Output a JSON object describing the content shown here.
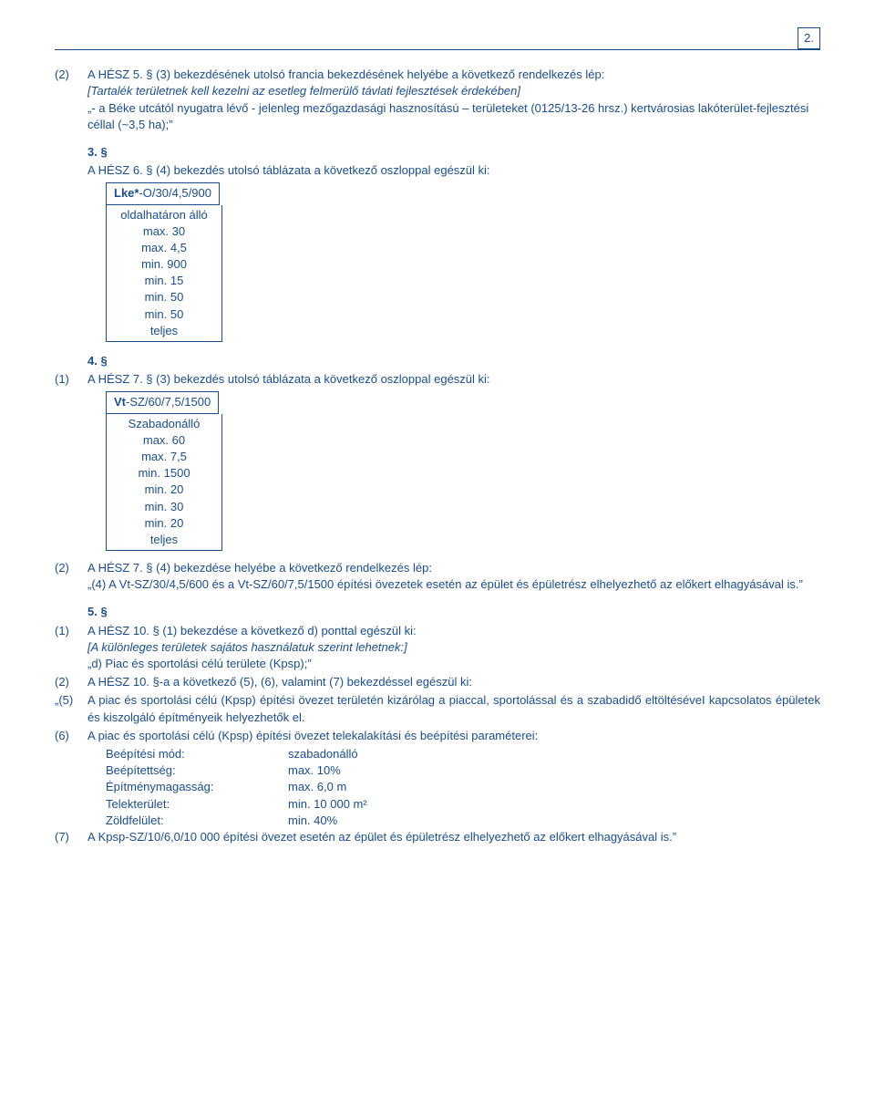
{
  "page_number": "2.",
  "colors": {
    "text": "#1a4d8f",
    "border": "#1a4d8f",
    "bg": "#ffffff"
  },
  "fonts": {
    "body_family": "Verdana",
    "body_size_pt": 10
  },
  "p1": {
    "marker": "(2)",
    "lead": "A HÉSZ 5. § (3) bekezdésének utolsó francia bekezdésének helyébe a következő rendelkezés lép:",
    "italic_note": "[Tartalék területnek kell kezelni az esetleg felmerülő távlati fejlesztések érdekében]",
    "body": "„- a Béke utcától nyugatra lévő - jelenleg mezőgazdasági hasznosítású – területeket (0125/13-26 hrsz.) kertvárosias lakóterület-fejlesztési céllal (~3,5 ha);”"
  },
  "sec3": {
    "num": "3. §",
    "lead": "A HÉSZ 6. § (4) bekezdés utolsó táblázata a következő oszloppal egészül ki:",
    "table": {
      "header_b": "Lke*",
      "header_rest": "-O/30/4,5/900",
      "rows": [
        "oldalhatáron álló",
        "max. 30",
        "max. 4,5",
        "min. 900",
        "min. 15",
        "min. 50",
        "min. 50",
        "teljes"
      ]
    }
  },
  "sec4": {
    "num": "4. §",
    "p1_marker": "(1)",
    "p1_lead": "A HÉSZ 7. § (3) bekezdés utolsó táblázata a következő oszloppal egészül ki:",
    "table": {
      "header_b": "Vt",
      "header_rest": "-SZ/60/7,5/1500",
      "rows": [
        "Szabadonálló",
        "max. 60",
        "max. 7,5",
        "min. 1500",
        "min. 20",
        "min. 30",
        "min. 20",
        "teljes"
      ]
    },
    "p2_marker": "(2)",
    "p2_lead": "A HÉSZ 7. § (4) bekezdése helyébe a következő rendelkezés lép:",
    "p2_body": "„(4) A Vt-SZ/30/4,5/600 és a Vt-SZ/60/7,5/1500 építési övezetek esetén az épület és épületrész elhelyezhető az előkert elhagyásával is.”"
  },
  "sec5": {
    "num": "5. §",
    "p1_marker": "(1)",
    "p1_lead": "A HÉSZ 10. § (1) bekezdése a következő d) ponttal egészül ki:",
    "p1_italic": "[A különleges területek sajátos használatuk szerint lehetnek:]",
    "p1_body": "„d) Piac és sportolási célú területe (Kpsp);”",
    "p2_marker": "(2)",
    "p2_lead": "A HÉSZ 10. §-a a következő (5), (6), valamint (7) bekezdéssel egészül ki:",
    "p5_marker": "„(5)",
    "p5_body": "A piac és sportolási célú (Kpsp) építési övezet területén kizárólag a piaccal, sportolással és a szabadidő eltöltéséveI kapcsolatos épületek és kiszolgáló építményeik helyezhetők el.",
    "p6_marker": "(6)",
    "p6_lead": "A piac és sportolási célú (Kpsp) építési övezet telekalakítási és beépítési paraméterei:",
    "params": [
      {
        "label": "Beépítési mód:",
        "value": "szabadonálló"
      },
      {
        "label": "Beépítettség:",
        "value": "max. 10%"
      },
      {
        "label": "Építménymagasság:",
        "value": "max. 6,0 m"
      },
      {
        "label": "Telekterület:",
        "value": "min. 10 000 m²"
      },
      {
        "label": "Zöldfelület:",
        "value": "min. 40%"
      }
    ],
    "p7_marker": "(7)",
    "p7_body": "A Kpsp-SZ/10/6,0/10 000 építési övezet esetén az épület és épületrész elhelyezhető az előkert elhagyásával is.”"
  }
}
